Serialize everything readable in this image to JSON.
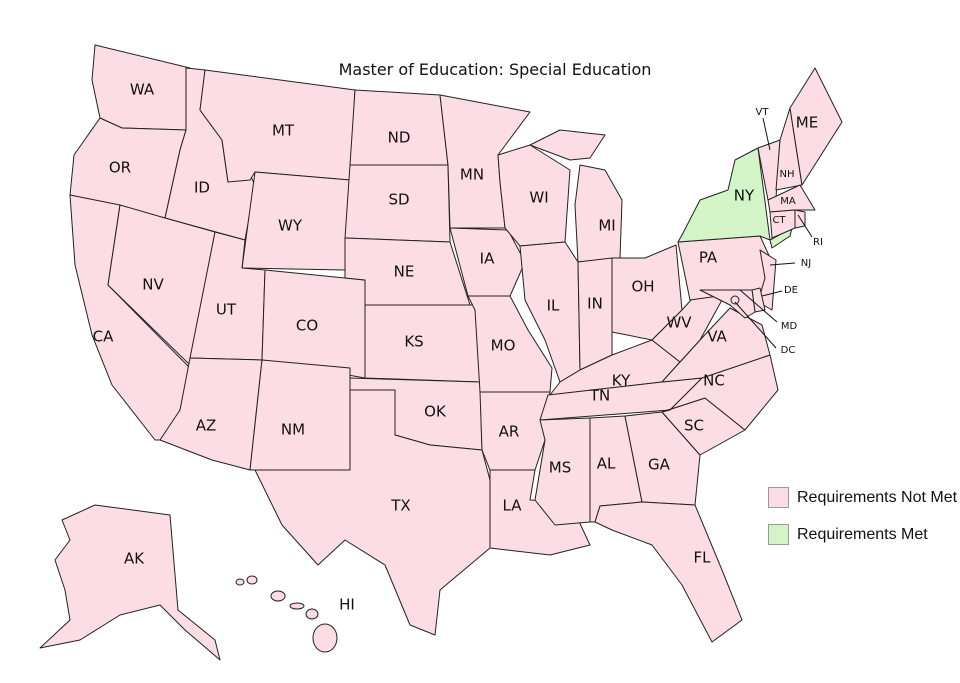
{
  "title": "Master of Education: Special Education",
  "colors": {
    "not_met": "#fcdce5",
    "met": "#d3f4c6",
    "border": "#222222"
  },
  "legend": [
    {
      "label": "Requirements Not Met",
      "status": "not_met"
    },
    {
      "label": "Requirements Met",
      "status": "met"
    }
  ],
  "states": [
    {
      "code": "WA",
      "status": "not_met"
    },
    {
      "code": "OR",
      "status": "not_met"
    },
    {
      "code": "CA",
      "status": "not_met"
    },
    {
      "code": "ID",
      "status": "not_met"
    },
    {
      "code": "NV",
      "status": "not_met"
    },
    {
      "code": "MT",
      "status": "not_met"
    },
    {
      "code": "WY",
      "status": "not_met"
    },
    {
      "code": "UT",
      "status": "not_met"
    },
    {
      "code": "CO",
      "status": "not_met"
    },
    {
      "code": "AZ",
      "status": "not_met"
    },
    {
      "code": "NM",
      "status": "not_met"
    },
    {
      "code": "ND",
      "status": "not_met"
    },
    {
      "code": "SD",
      "status": "not_met"
    },
    {
      "code": "NE",
      "status": "not_met"
    },
    {
      "code": "KS",
      "status": "not_met"
    },
    {
      "code": "OK",
      "status": "not_met"
    },
    {
      "code": "TX",
      "status": "not_met"
    },
    {
      "code": "MN",
      "status": "not_met"
    },
    {
      "code": "IA",
      "status": "not_met"
    },
    {
      "code": "MO",
      "status": "not_met"
    },
    {
      "code": "AR",
      "status": "not_met"
    },
    {
      "code": "LA",
      "status": "not_met"
    },
    {
      "code": "WI",
      "status": "not_met"
    },
    {
      "code": "IL",
      "status": "not_met"
    },
    {
      "code": "MI",
      "status": "not_met"
    },
    {
      "code": "IN",
      "status": "not_met"
    },
    {
      "code": "OH",
      "status": "not_met"
    },
    {
      "code": "KY",
      "status": "not_met"
    },
    {
      "code": "TN",
      "status": "not_met"
    },
    {
      "code": "MS",
      "status": "not_met"
    },
    {
      "code": "AL",
      "status": "not_met"
    },
    {
      "code": "GA",
      "status": "not_met"
    },
    {
      "code": "FL",
      "status": "not_met"
    },
    {
      "code": "SC",
      "status": "not_met"
    },
    {
      "code": "NC",
      "status": "not_met"
    },
    {
      "code": "VA",
      "status": "not_met"
    },
    {
      "code": "WV",
      "status": "not_met"
    },
    {
      "code": "PA",
      "status": "not_met"
    },
    {
      "code": "NY",
      "status": "met"
    },
    {
      "code": "NJ",
      "status": "not_met"
    },
    {
      "code": "DE",
      "status": "not_met"
    },
    {
      "code": "MD",
      "status": "not_met"
    },
    {
      "code": "DC",
      "status": "not_met"
    },
    {
      "code": "VT",
      "status": "not_met"
    },
    {
      "code": "NH",
      "status": "not_met"
    },
    {
      "code": "ME",
      "status": "not_met"
    },
    {
      "code": "MA",
      "status": "not_met"
    },
    {
      "code": "CT",
      "status": "not_met"
    },
    {
      "code": "RI",
      "status": "not_met"
    },
    {
      "code": "AK",
      "status": "not_met"
    },
    {
      "code": "HI",
      "status": "not_met"
    }
  ]
}
